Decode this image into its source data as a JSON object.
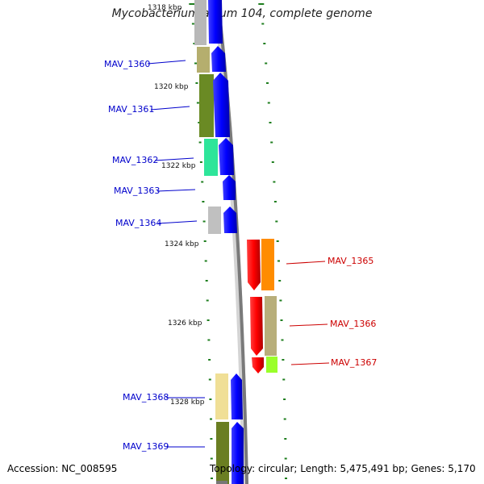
{
  "title": "Mycobacterium avium 104, complete genome",
  "accession": "Accession: NC_008595",
  "topology": "Topology: circular; Length: 5,475,491 bp; Genes: 5,170",
  "ticks": [
    "1318 kbp",
    "1320 kbp",
    "1322 kbp",
    "1324 kbp",
    "1326 kbp",
    "1328 kbp"
  ],
  "genes": [
    {
      "name": "MAV_1360",
      "color": "#0000cc",
      "strand": "forward"
    },
    {
      "name": "MAV_1361",
      "color": "#0000cc",
      "strand": "forward"
    },
    {
      "name": "MAV_1362",
      "color": "#0000cc",
      "strand": "forward"
    },
    {
      "name": "MAV_1363",
      "color": "#0000cc",
      "strand": "forward"
    },
    {
      "name": "MAV_1364",
      "color": "#0000cc",
      "strand": "forward"
    },
    {
      "name": "MAV_1365",
      "color": "#cc0000",
      "strand": "reverse"
    },
    {
      "name": "MAV_1366",
      "color": "#cc0000",
      "strand": "reverse"
    },
    {
      "name": "MAV_1367",
      "color": "#cc0000",
      "strand": "reverse"
    },
    {
      "name": "MAV_1368",
      "color": "#0000cc",
      "strand": "forward"
    },
    {
      "name": "MAV_1369",
      "color": "#0000cc",
      "strand": "forward"
    }
  ]
}
